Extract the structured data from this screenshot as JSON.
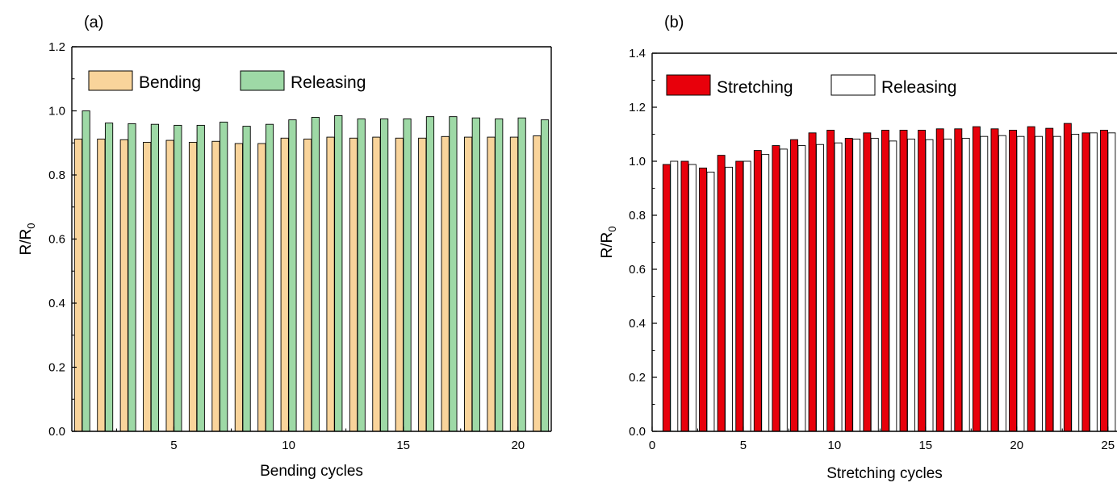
{
  "chart_data": [
    {
      "type": "bar",
      "panel_label": "(a)",
      "xlabel": "Bending cycles",
      "ylabel": {
        "main": "R/R",
        "sub": "0"
      },
      "x": [
        1,
        2,
        3,
        4,
        5,
        6,
        7,
        8,
        9,
        10,
        11,
        12,
        13,
        14,
        15,
        16,
        17,
        18,
        19,
        20,
        21
      ],
      "xlim": [
        0.55,
        21.45
      ],
      "ylim": [
        0,
        1.2
      ],
      "xticks": [
        5,
        10,
        15,
        20
      ],
      "xtick_labels": [
        "5",
        "10",
        "15",
        "20"
      ],
      "yticks": [
        0,
        0.2,
        0.4,
        0.6,
        0.8,
        1.0,
        1.2
      ],
      "ytick_labels": [
        "0.0",
        "0.2",
        "0.4",
        "0.6",
        "0.8",
        "1.0",
        "1.2"
      ],
      "legend_position": "top-left",
      "series": [
        {
          "name": "Bending",
          "color": "#f9d49b",
          "values": [
            0.912,
            0.912,
            0.91,
            0.902,
            0.908,
            0.902,
            0.905,
            0.898,
            0.898,
            0.915,
            0.912,
            0.918,
            0.915,
            0.918,
            0.915,
            0.915,
            0.92,
            0.918,
            0.918,
            0.918,
            0.922
          ]
        },
        {
          "name": "Releasing",
          "color": "#9ed9a6",
          "values": [
            1.0,
            0.962,
            0.96,
            0.958,
            0.955,
            0.955,
            0.965,
            0.952,
            0.958,
            0.972,
            0.98,
            0.985,
            0.975,
            0.975,
            0.975,
            0.982,
            0.982,
            0.978,
            0.975,
            0.978,
            0.972
          ]
        }
      ]
    },
    {
      "type": "bar",
      "panel_label": "(b)",
      "xlabel": "Stretching cycles",
      "ylabel": {
        "main": "R/R",
        "sub": "0"
      },
      "x": [
        1,
        2,
        3,
        4,
        5,
        6,
        7,
        8,
        9,
        10,
        11,
        12,
        13,
        14,
        15,
        16,
        17,
        18,
        19,
        20,
        21,
        22,
        23,
        24,
        25
      ],
      "xlim": [
        0,
        25.5
      ],
      "ylim": [
        0,
        1.4
      ],
      "xticks": [
        0,
        5,
        10,
        15,
        20,
        25
      ],
      "xtick_labels": [
        "0",
        "5",
        "10",
        "15",
        "20",
        "25"
      ],
      "yticks": [
        0,
        0.2,
        0.4,
        0.6,
        0.8,
        1.0,
        1.2,
        1.4
      ],
      "ytick_labels": [
        "0.0",
        "0.2",
        "0.4",
        "0.6",
        "0.8",
        "1.0",
        "1.2",
        "1.4"
      ],
      "legend_position": "top-left",
      "series": [
        {
          "name": "Stretching",
          "color": "#e8000b",
          "values": [
            0.988,
            1.0,
            0.975,
            1.022,
            1.0,
            1.04,
            1.058,
            1.08,
            1.105,
            1.115,
            1.085,
            1.105,
            1.115,
            1.115,
            1.115,
            1.12,
            1.12,
            1.128,
            1.12,
            1.115,
            1.128,
            1.122,
            1.14,
            1.105,
            1.115
          ]
        },
        {
          "name": "Releasing",
          "color": "#ffffff",
          "values": [
            1.0,
            0.988,
            0.96,
            0.978,
            1.0,
            1.025,
            1.045,
            1.058,
            1.062,
            1.068,
            1.082,
            1.085,
            1.075,
            1.082,
            1.08,
            1.082,
            1.085,
            1.092,
            1.095,
            1.092,
            1.092,
            1.092,
            1.1,
            1.105,
            1.105
          ]
        }
      ]
    }
  ]
}
